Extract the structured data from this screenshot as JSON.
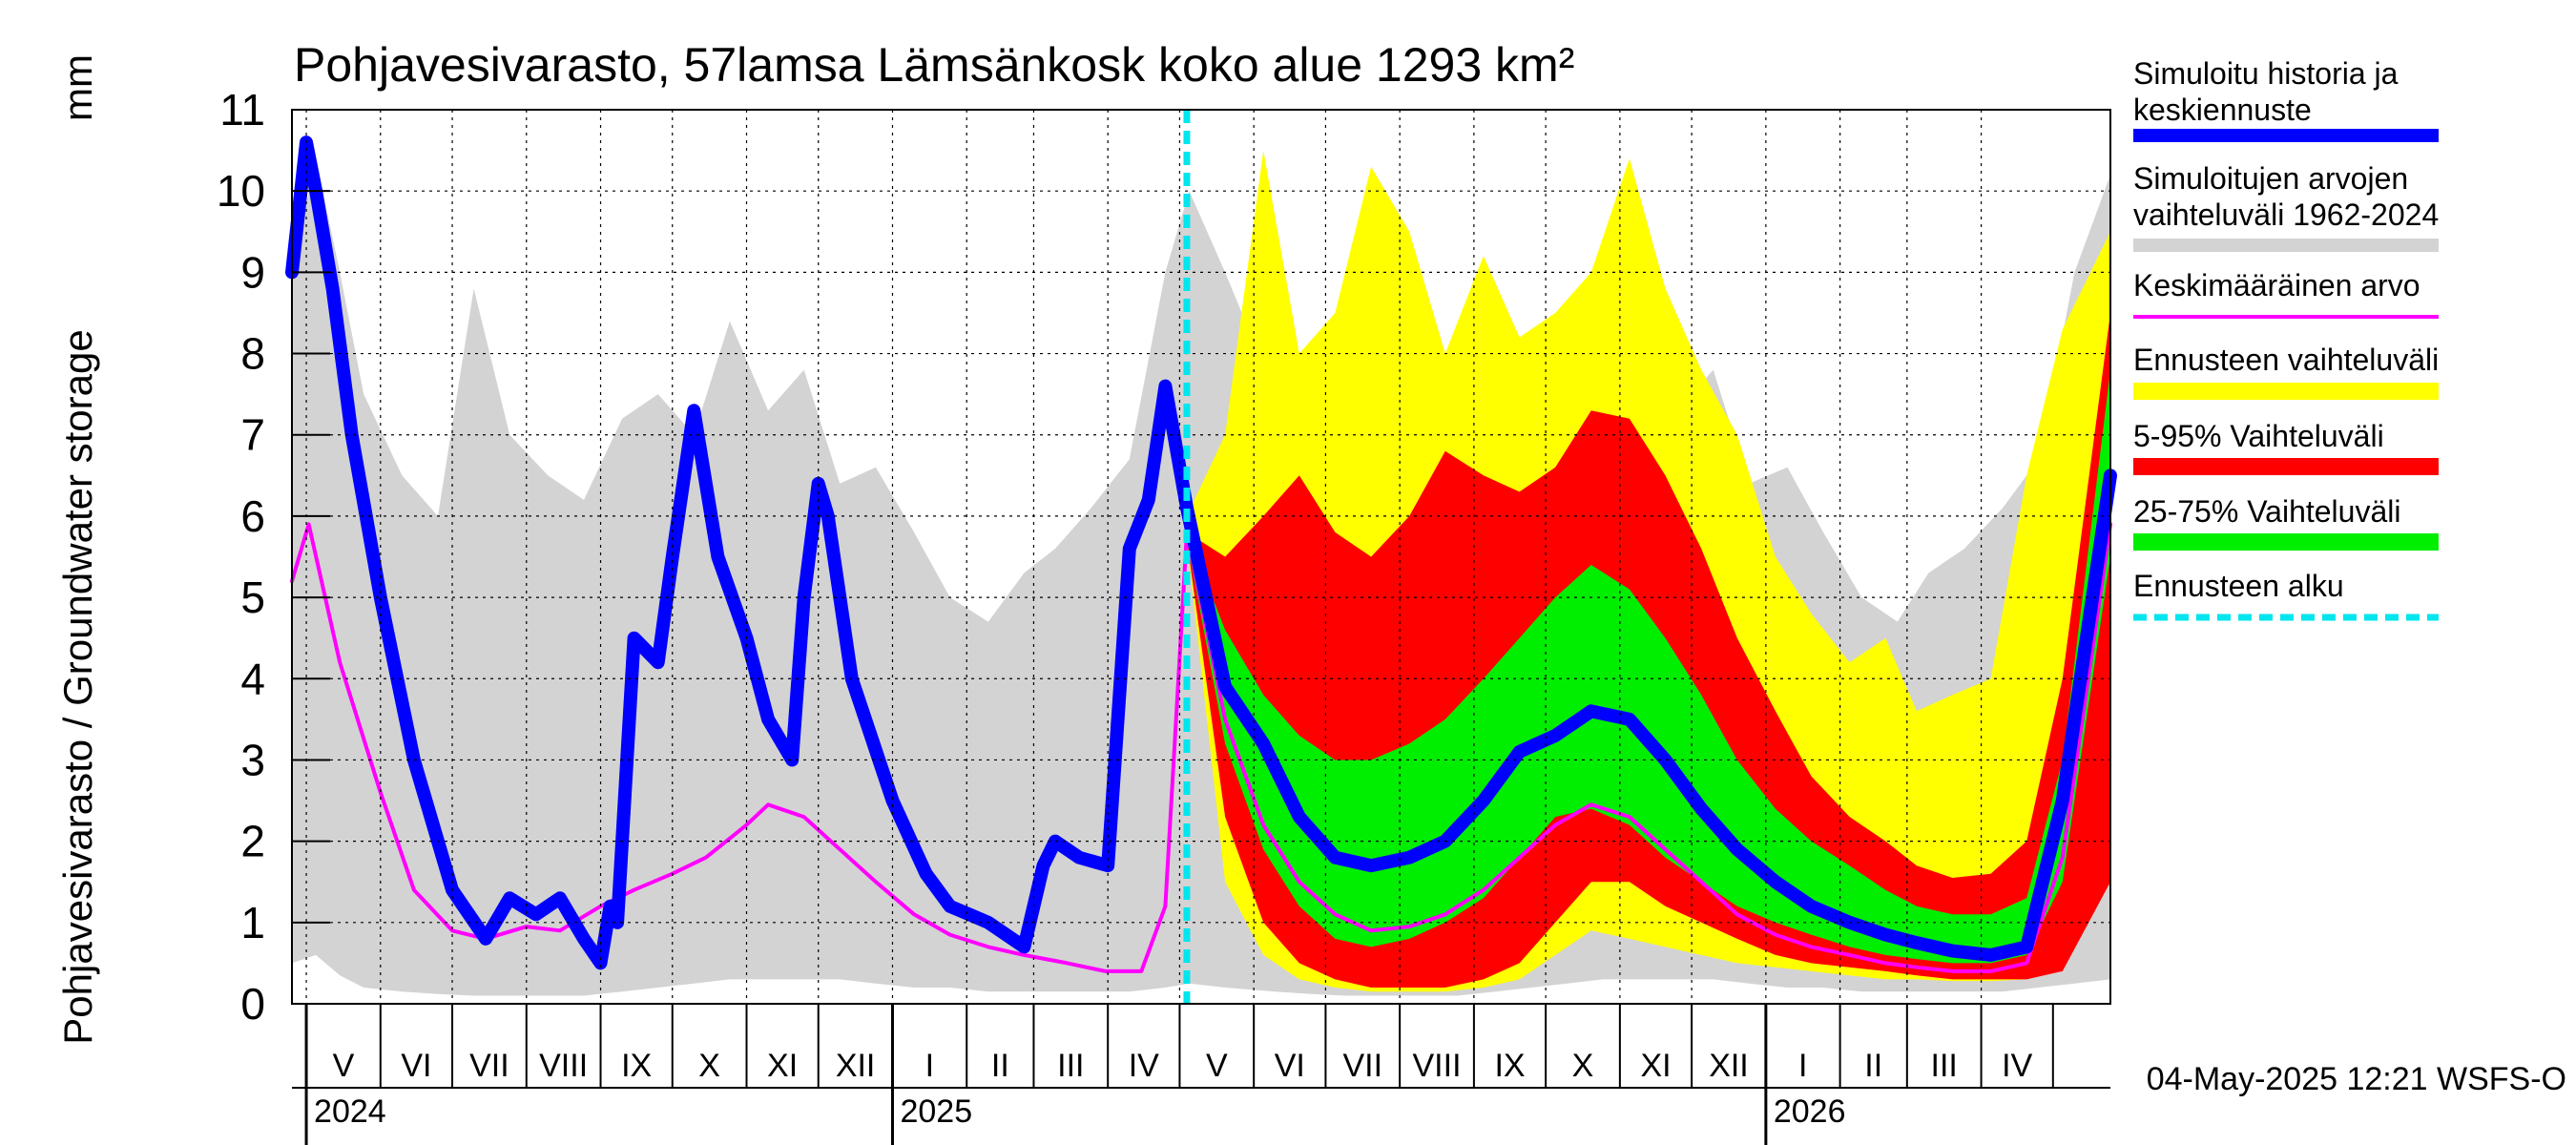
{
  "title": "Pohjavesivarasto, 57lamsa Lämsänkosk koko alue 1293 km²",
  "ylabel": "Pohjavesivarasto / Groundwater storage",
  "yunit": "mm",
  "footer": "04-May-2025 12:21 WSFS-O",
  "legend": [
    {
      "label": "Simuloitu historia ja keskiennuste",
      "color": "#0000ff"
    },
    {
      "label": "Simuloitujen arvojen vaihteluväli 1962-2024",
      "color": "#d3d3d3"
    },
    {
      "label": "Keskimääräinen arvo",
      "color": "#ff00ff"
    },
    {
      "label": "Ennusteen vaihteluväli",
      "color": "#ffff00"
    },
    {
      "label": "5-95% Vaihteluväli",
      "color": "#ff0000"
    },
    {
      "label": "25-75% Vaihteluväli",
      "color": "#00ee00"
    },
    {
      "label": "Ennusteen alku",
      "color": "#00e5ee"
    }
  ],
  "chart_data": {
    "type": "line",
    "x_unit": "date",
    "xlim": [
      "2024-04-25",
      "2026-05-25"
    ],
    "ylim": [
      0,
      11
    ],
    "yticks": [
      0,
      1,
      2,
      3,
      4,
      5,
      6,
      7,
      8,
      9,
      10,
      11
    ],
    "month_labels": [
      {
        "label": "V",
        "month": "2024-05"
      },
      {
        "label": "VI",
        "month": "2024-06"
      },
      {
        "label": "VII",
        "month": "2024-07"
      },
      {
        "label": "VIII",
        "month": "2024-08"
      },
      {
        "label": "IX",
        "month": "2024-09"
      },
      {
        "label": "X",
        "month": "2024-10"
      },
      {
        "label": "XI",
        "month": "2024-11"
      },
      {
        "label": "XII",
        "month": "2024-12"
      },
      {
        "label": "I",
        "month": "2025-01"
      },
      {
        "label": "II",
        "month": "2025-02"
      },
      {
        "label": "III",
        "month": "2025-03"
      },
      {
        "label": "IV",
        "month": "2025-04"
      },
      {
        "label": "V",
        "month": "2025-05"
      },
      {
        "label": "VI",
        "month": "2025-06"
      },
      {
        "label": "VII",
        "month": "2025-07"
      },
      {
        "label": "VIII",
        "month": "2025-08"
      },
      {
        "label": "IX",
        "month": "2025-09"
      },
      {
        "label": "X",
        "month": "2025-10"
      },
      {
        "label": "XI",
        "month": "2025-11"
      },
      {
        "label": "XII",
        "month": "2025-12"
      },
      {
        "label": "I",
        "month": "2026-01"
      },
      {
        "label": "II",
        "month": "2026-02"
      },
      {
        "label": "III",
        "month": "2026-03"
      },
      {
        "label": "IV",
        "month": "2026-04"
      }
    ],
    "year_labels": [
      {
        "label": "2024",
        "date": "2024-05-01"
      },
      {
        "label": "2025",
        "date": "2025-01-01"
      },
      {
        "label": "2026",
        "date": "2026-01-01"
      }
    ],
    "forecast_start": "2025-05-04",
    "series": [
      {
        "name": "Simuloitujen arvojen vaihteluväli 1962-2024",
        "kind": "band",
        "color": "#d3d3d3",
        "x": [
          "2024-04-25",
          "2024-05-05",
          "2024-05-15",
          "2024-05-25",
          "2024-06-10",
          "2024-06-25",
          "2024-07-10",
          "2024-07-25",
          "2024-08-10",
          "2024-08-25",
          "2024-09-10",
          "2024-09-25",
          "2024-10-10",
          "2024-10-25",
          "2024-11-10",
          "2024-11-25",
          "2024-12-10",
          "2024-12-25",
          "2025-01-10",
          "2025-01-25",
          "2025-02-10",
          "2025-02-25",
          "2025-03-10",
          "2025-03-25",
          "2025-04-10",
          "2025-04-25",
          "2025-05-05",
          "2025-05-20",
          "2025-06-10",
          "2025-06-25",
          "2025-07-10",
          "2025-07-25",
          "2025-08-10",
          "2025-08-25",
          "2025-09-10",
          "2025-09-25",
          "2025-10-10",
          "2025-10-25",
          "2025-11-10",
          "2025-11-25",
          "2025-12-10",
          "2025-12-25",
          "2026-01-10",
          "2026-01-25",
          "2026-02-10",
          "2026-02-25",
          "2026-03-10",
          "2026-03-25",
          "2026-04-10",
          "2026-04-25",
          "2026-05-10",
          "2026-05-25"
        ],
        "lower": [
          0.5,
          0.6,
          0.35,
          0.2,
          0.15,
          0.12,
          0.1,
          0.1,
          0.1,
          0.1,
          0.15,
          0.2,
          0.25,
          0.3,
          0.3,
          0.3,
          0.3,
          0.25,
          0.2,
          0.2,
          0.15,
          0.15,
          0.15,
          0.15,
          0.15,
          0.2,
          0.25,
          0.2,
          0.15,
          0.12,
          0.1,
          0.1,
          0.1,
          0.1,
          0.15,
          0.2,
          0.25,
          0.3,
          0.3,
          0.3,
          0.3,
          0.25,
          0.2,
          0.2,
          0.15,
          0.15,
          0.15,
          0.15,
          0.15,
          0.2,
          0.25,
          0.3
        ],
        "upper": [
          9.0,
          10.4,
          9.0,
          7.5,
          6.5,
          6.0,
          8.8,
          7.0,
          6.5,
          6.2,
          7.2,
          7.5,
          7.0,
          8.4,
          7.3,
          7.8,
          6.4,
          6.6,
          5.8,
          5.0,
          4.7,
          5.3,
          5.6,
          6.1,
          6.7,
          9.0,
          10.0,
          9.0,
          7.5,
          6.5,
          6.0,
          8.8,
          7.0,
          6.5,
          6.2,
          7.2,
          7.5,
          7.0,
          8.4,
          7.3,
          7.8,
          6.4,
          6.6,
          5.8,
          5.0,
          4.7,
          5.3,
          5.6,
          6.1,
          6.7,
          9.0,
          10.2
        ]
      },
      {
        "name": "Ennusteen vaihteluväli",
        "kind": "band",
        "color": "#ffff00",
        "x": [
          "2025-05-04",
          "2025-05-20",
          "2025-06-05",
          "2025-06-20",
          "2025-07-05",
          "2025-07-20",
          "2025-08-05",
          "2025-08-20",
          "2025-09-05",
          "2025-09-20",
          "2025-10-05",
          "2025-10-20",
          "2025-11-05",
          "2025-11-20",
          "2025-12-05",
          "2025-12-20",
          "2026-01-05",
          "2026-01-20",
          "2026-02-05",
          "2026-02-20",
          "2026-03-05",
          "2026-03-20",
          "2026-04-05",
          "2026-04-20",
          "2026-05-05",
          "2026-05-25"
        ],
        "lower": [
          5.7,
          1.5,
          0.6,
          0.3,
          0.2,
          0.15,
          0.15,
          0.15,
          0.2,
          0.3,
          0.6,
          0.9,
          0.8,
          0.7,
          0.6,
          0.5,
          0.45,
          0.4,
          0.35,
          0.3,
          0.3,
          0.28,
          0.28,
          0.3,
          0.5,
          1.5
        ],
        "upper": [
          6.0,
          7.0,
          10.5,
          8.0,
          8.5,
          10.3,
          9.5,
          8.0,
          9.2,
          8.2,
          8.5,
          9.0,
          10.4,
          8.8,
          7.8,
          7.0,
          5.5,
          4.8,
          4.2,
          4.5,
          3.6,
          3.8,
          4.0,
          6.5,
          8.3,
          9.5
        ]
      },
      {
        "name": "5-95% Vaihteluväli",
        "kind": "band",
        "color": "#ff0000",
        "x": [
          "2025-05-04",
          "2025-05-20",
          "2025-06-05",
          "2025-06-20",
          "2025-07-05",
          "2025-07-20",
          "2025-08-05",
          "2025-08-20",
          "2025-09-05",
          "2025-09-20",
          "2025-10-05",
          "2025-10-20",
          "2025-11-05",
          "2025-11-20",
          "2025-12-05",
          "2025-12-20",
          "2026-01-05",
          "2026-01-20",
          "2026-02-05",
          "2026-02-20",
          "2026-03-05",
          "2026-03-20",
          "2026-04-05",
          "2026-04-20",
          "2026-05-05",
          "2026-05-25"
        ],
        "lower": [
          5.7,
          2.3,
          1.0,
          0.5,
          0.3,
          0.2,
          0.2,
          0.2,
          0.3,
          0.5,
          1.0,
          1.5,
          1.5,
          1.2,
          1.0,
          0.8,
          0.6,
          0.5,
          0.45,
          0.4,
          0.35,
          0.3,
          0.3,
          0.3,
          0.4,
          1.5
        ],
        "upper": [
          5.8,
          5.5,
          6.0,
          6.5,
          5.8,
          5.5,
          6.0,
          6.8,
          6.5,
          6.3,
          6.6,
          7.3,
          7.2,
          6.5,
          5.6,
          4.5,
          3.6,
          2.8,
          2.3,
          2.0,
          1.7,
          1.55,
          1.6,
          2.0,
          4.0,
          8.5
        ]
      },
      {
        "name": "25-75% Vaihteluväli",
        "kind": "band",
        "color": "#00ee00",
        "x": [
          "2025-05-04",
          "2025-05-20",
          "2025-06-05",
          "2025-06-20",
          "2025-07-05",
          "2025-07-20",
          "2025-08-05",
          "2025-08-20",
          "2025-09-05",
          "2025-09-20",
          "2025-10-05",
          "2025-10-20",
          "2025-11-05",
          "2025-11-20",
          "2025-12-05",
          "2025-12-20",
          "2026-01-05",
          "2026-01-20",
          "2026-02-05",
          "2026-02-20",
          "2026-03-05",
          "2026-03-20",
          "2026-04-05",
          "2026-04-20",
          "2026-05-05",
          "2026-05-25"
        ],
        "lower": [
          5.7,
          3.2,
          1.9,
          1.2,
          0.8,
          0.7,
          0.8,
          1.0,
          1.3,
          1.8,
          2.3,
          2.4,
          2.2,
          1.8,
          1.5,
          1.2,
          1.0,
          0.85,
          0.7,
          0.6,
          0.55,
          0.5,
          0.5,
          0.6,
          1.5,
          5.5
        ],
        "upper": [
          5.8,
          4.6,
          3.8,
          3.3,
          3.0,
          3.0,
          3.2,
          3.5,
          4.0,
          4.5,
          5.0,
          5.4,
          5.1,
          4.5,
          3.8,
          3.0,
          2.4,
          2.0,
          1.7,
          1.4,
          1.2,
          1.1,
          1.1,
          1.3,
          3.0,
          7.8
        ]
      },
      {
        "name": "Keskimääräinen arvo",
        "kind": "line",
        "color": "#ff00ff",
        "width": 4,
        "x": [
          "2024-04-25",
          "2024-05-02",
          "2024-05-15",
          "2024-06-01",
          "2024-06-15",
          "2024-07-01",
          "2024-07-15",
          "2024-08-01",
          "2024-08-15",
          "2024-09-01",
          "2024-09-15",
          "2024-10-01",
          "2024-10-15",
          "2024-11-01",
          "2024-11-10",
          "2024-11-25",
          "2024-12-10",
          "2024-12-25",
          "2025-01-10",
          "2025-01-25",
          "2025-02-10",
          "2025-02-25",
          "2025-03-15",
          "2025-03-31",
          "2025-04-15",
          "2025-04-25",
          "2025-05-04",
          "2025-05-20",
          "2025-06-05",
          "2025-06-20",
          "2025-07-05",
          "2025-07-20",
          "2025-08-05",
          "2025-08-20",
          "2025-09-05",
          "2025-09-20",
          "2025-10-05",
          "2025-10-20",
          "2025-11-05",
          "2025-11-20",
          "2025-12-05",
          "2025-12-20",
          "2026-01-05",
          "2026-01-20",
          "2026-02-05",
          "2026-02-20",
          "2026-03-05",
          "2026-03-20",
          "2026-04-05",
          "2026-04-20",
          "2026-05-05",
          "2026-05-25"
        ],
        "y": [
          5.2,
          5.9,
          4.2,
          2.6,
          1.4,
          0.9,
          0.8,
          0.95,
          0.9,
          1.2,
          1.4,
          1.6,
          1.8,
          2.2,
          2.45,
          2.3,
          1.9,
          1.5,
          1.1,
          0.85,
          0.7,
          0.6,
          0.5,
          0.4,
          0.4,
          1.2,
          5.8,
          3.5,
          2.2,
          1.5,
          1.1,
          0.9,
          0.95,
          1.1,
          1.4,
          1.8,
          2.2,
          2.45,
          2.3,
          1.9,
          1.5,
          1.1,
          0.85,
          0.7,
          0.6,
          0.5,
          0.45,
          0.4,
          0.4,
          0.5,
          1.8,
          5.9
        ]
      },
      {
        "name": "Simuloitu historia ja keskiennuste",
        "kind": "line",
        "color": "#0000ff",
        "width": 14,
        "x": [
          "2024-04-25",
          "2024-05-01",
          "2024-05-05",
          "2024-05-12",
          "2024-05-20",
          "2024-06-01",
          "2024-06-15",
          "2024-07-01",
          "2024-07-15",
          "2024-07-25",
          "2024-08-05",
          "2024-08-15",
          "2024-08-25",
          "2024-09-01",
          "2024-09-05",
          "2024-09-08",
          "2024-09-15",
          "2024-09-25",
          "2024-10-01",
          "2024-10-10",
          "2024-10-20",
          "2024-11-01",
          "2024-11-10",
          "2024-11-20",
          "2024-11-25",
          "2024-12-01",
          "2024-12-05",
          "2024-12-15",
          "2025-01-01",
          "2025-01-15",
          "2025-01-25",
          "2025-02-10",
          "2025-02-25",
          "2025-03-05",
          "2025-03-10",
          "2025-03-20",
          "2025-04-01",
          "2025-04-10",
          "2025-04-18",
          "2025-04-25",
          "2025-05-04",
          "2025-05-20",
          "2025-06-05",
          "2025-06-20",
          "2025-07-05",
          "2025-07-20",
          "2025-08-05",
          "2025-08-20",
          "2025-09-05",
          "2025-09-20",
          "2025-10-05",
          "2025-10-20",
          "2025-11-05",
          "2025-11-20",
          "2025-12-05",
          "2025-12-20",
          "2026-01-05",
          "2026-01-20",
          "2026-02-05",
          "2026-02-20",
          "2026-03-05",
          "2026-03-20",
          "2026-04-05",
          "2026-04-20",
          "2026-05-05",
          "2026-05-25"
        ],
        "y": [
          9.0,
          10.6,
          10.0,
          8.8,
          7.0,
          5.0,
          3.0,
          1.4,
          0.8,
          1.3,
          1.1,
          1.3,
          0.8,
          0.5,
          1.2,
          1.0,
          4.5,
          4.2,
          5.5,
          7.3,
          5.5,
          4.5,
          3.5,
          3.0,
          5.0,
          6.4,
          6.0,
          4.0,
          2.5,
          1.6,
          1.2,
          1.0,
          0.7,
          1.7,
          2.0,
          1.8,
          1.7,
          5.6,
          6.2,
          7.6,
          6.1,
          3.9,
          3.2,
          2.3,
          1.8,
          1.7,
          1.8,
          2.0,
          2.5,
          3.1,
          3.3,
          3.6,
          3.5,
          3.0,
          2.4,
          1.9,
          1.5,
          1.2,
          1.0,
          0.85,
          0.75,
          0.65,
          0.6,
          0.7,
          2.5,
          6.5
        ]
      }
    ]
  }
}
